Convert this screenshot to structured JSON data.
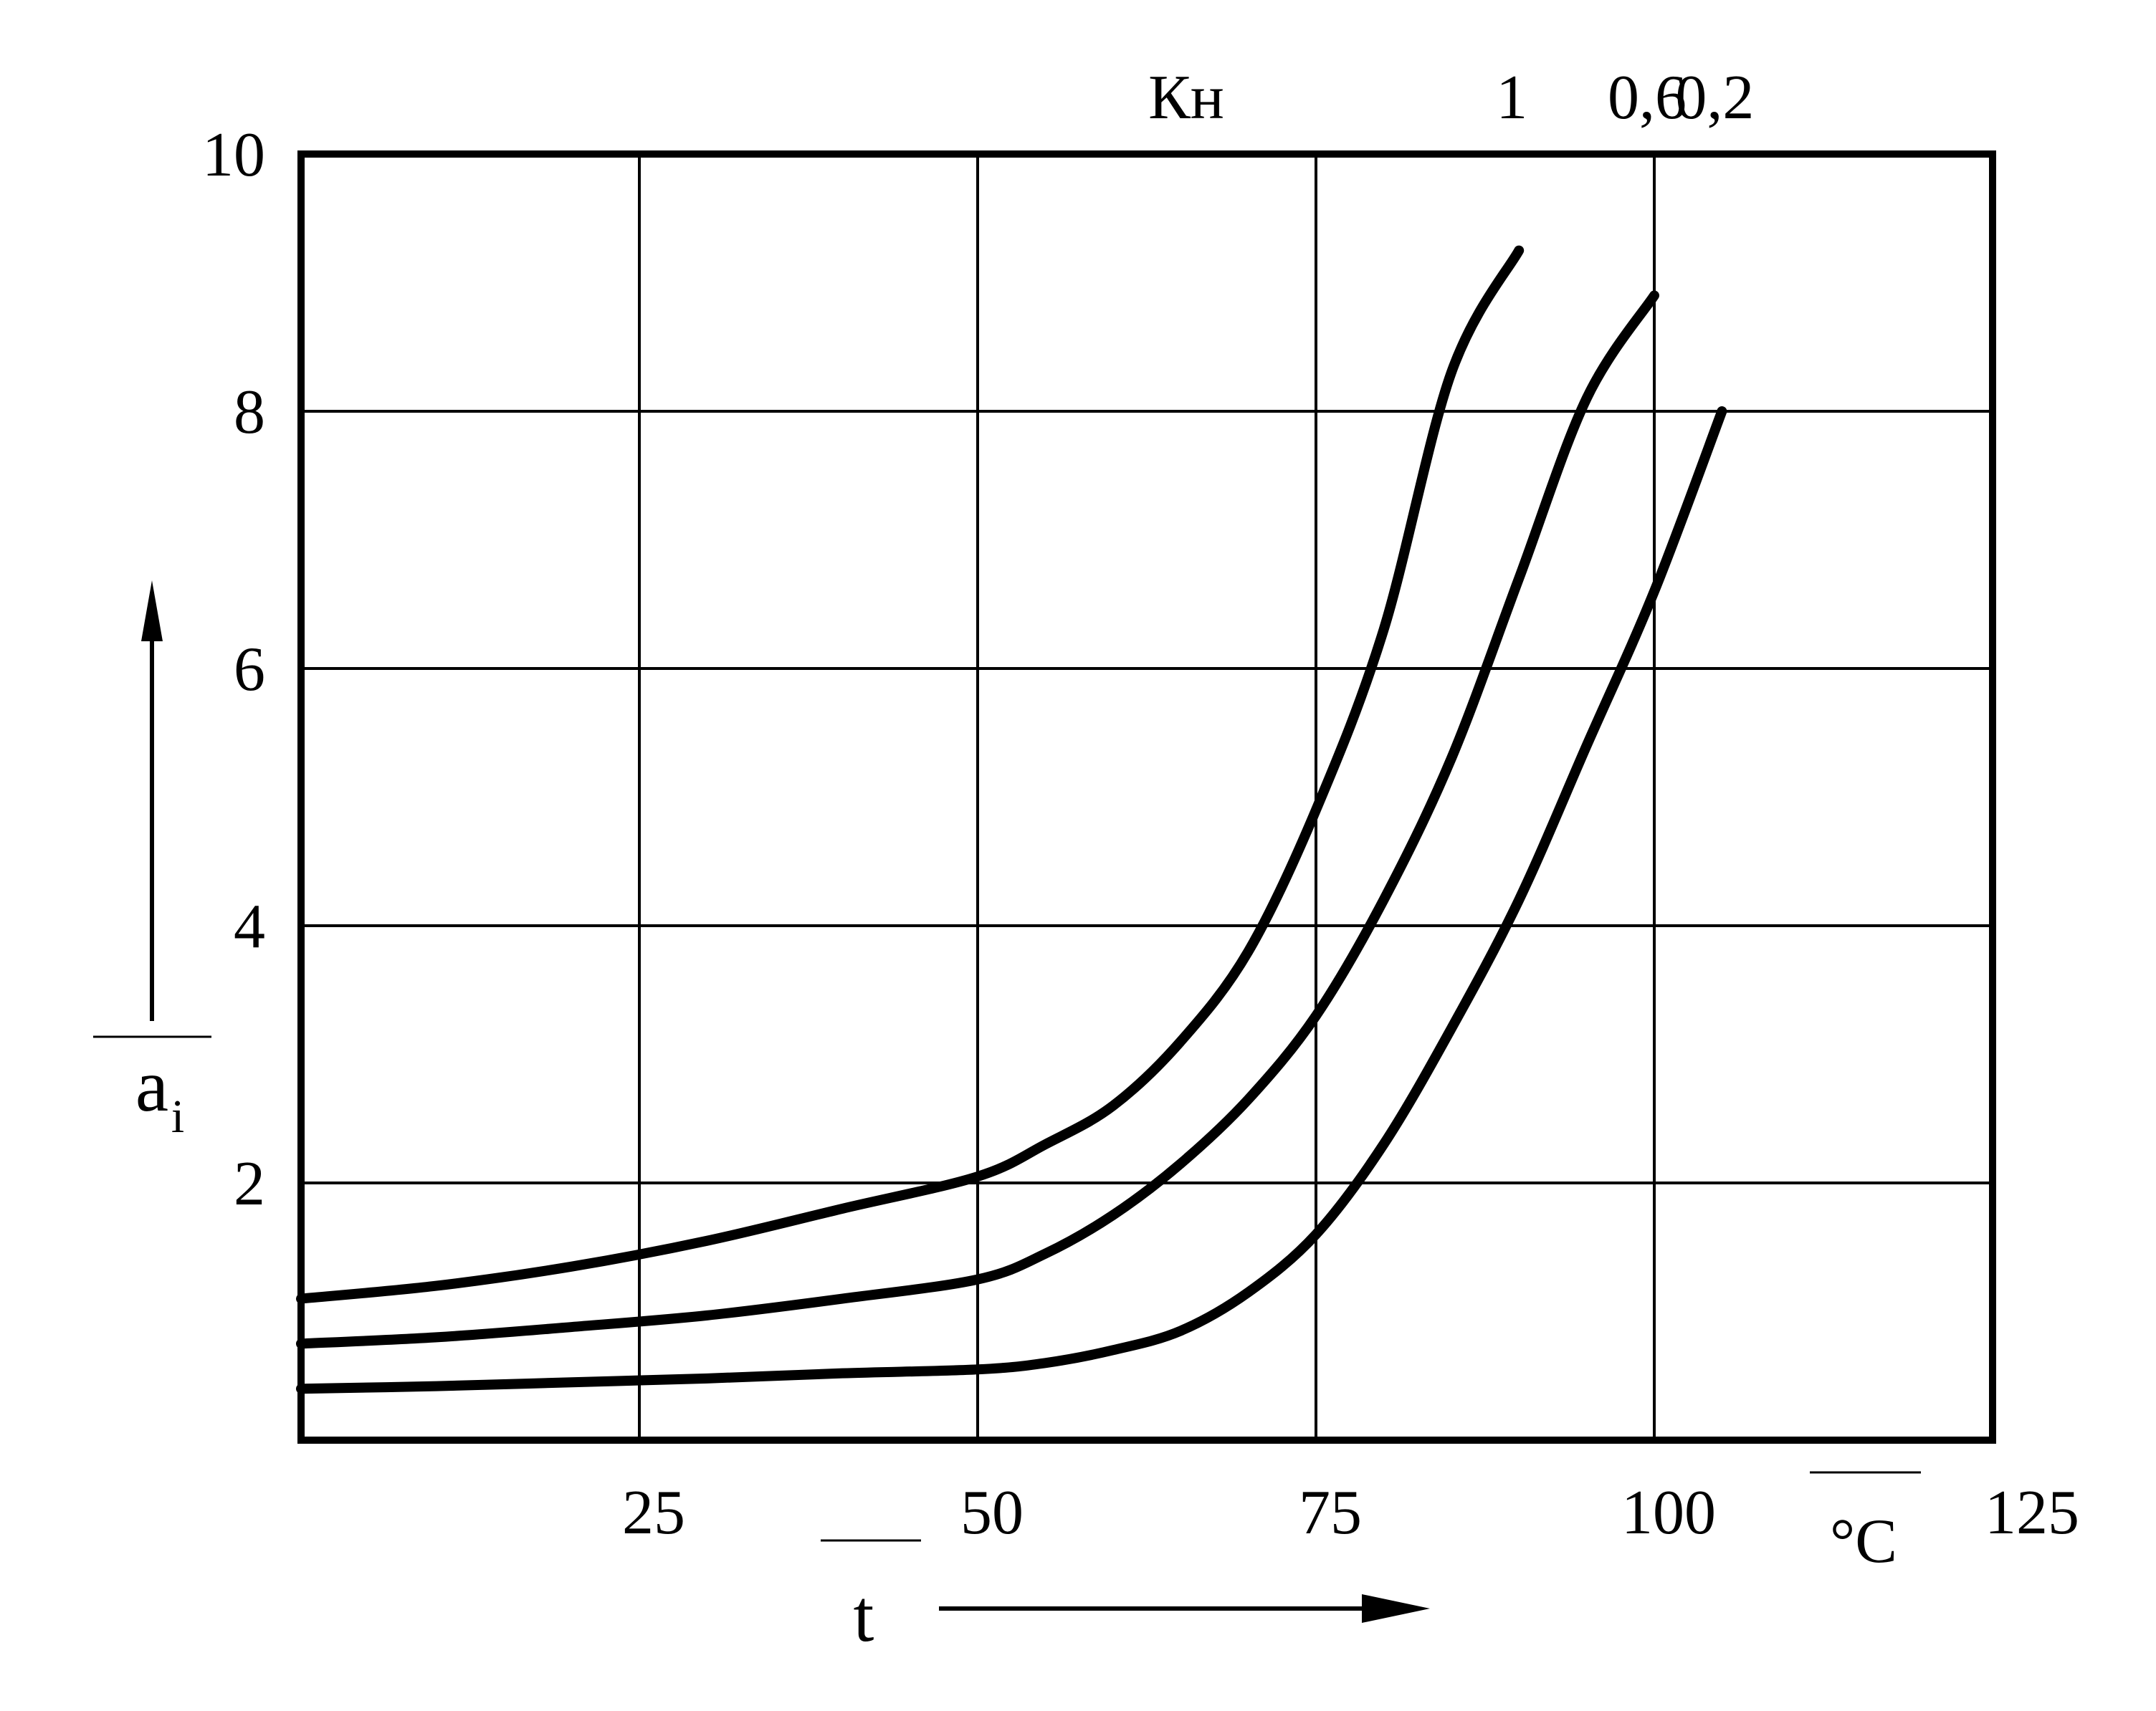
{
  "chart_data": {
    "type": "line",
    "x": [
      0,
      10,
      20,
      30,
      40,
      50,
      55,
      60,
      65,
      70,
      75,
      80,
      85,
      90,
      95,
      100,
      105
    ],
    "xlabel": "t",
    "x_unit": "°C",
    "ylabel": "a",
    "ylabel_subscript": "i",
    "xlim": [
      0,
      125
    ],
    "ylim": [
      0,
      10
    ],
    "x_ticks": [
      "25",
      "50",
      "75",
      "100",
      "125"
    ],
    "y_ticks": [
      "2",
      "4",
      "6",
      "8",
      "10"
    ],
    "grid": true,
    "legend_title": "Кн",
    "legend_position": "top",
    "series": [
      {
        "name": "1",
        "values": [
          1.1,
          1.2,
          1.35,
          1.55,
          1.8,
          2.05,
          2.3,
          2.6,
          3.1,
          3.8,
          4.9,
          6.3,
          8.3,
          9.25,
          null,
          null,
          null
        ]
      },
      {
        "name": "0,6",
        "values": [
          0.75,
          0.8,
          0.88,
          0.97,
          1.1,
          1.25,
          1.45,
          1.75,
          2.15,
          2.65,
          3.3,
          4.2,
          5.3,
          6.7,
          8.1,
          8.9,
          null
        ]
      },
      {
        "name": "0,2",
        "values": [
          0.4,
          0.42,
          0.45,
          0.48,
          0.52,
          0.55,
          0.6,
          0.7,
          0.85,
          1.15,
          1.6,
          2.3,
          3.2,
          4.2,
          5.4,
          6.6,
          8.0
        ]
      }
    ]
  }
}
